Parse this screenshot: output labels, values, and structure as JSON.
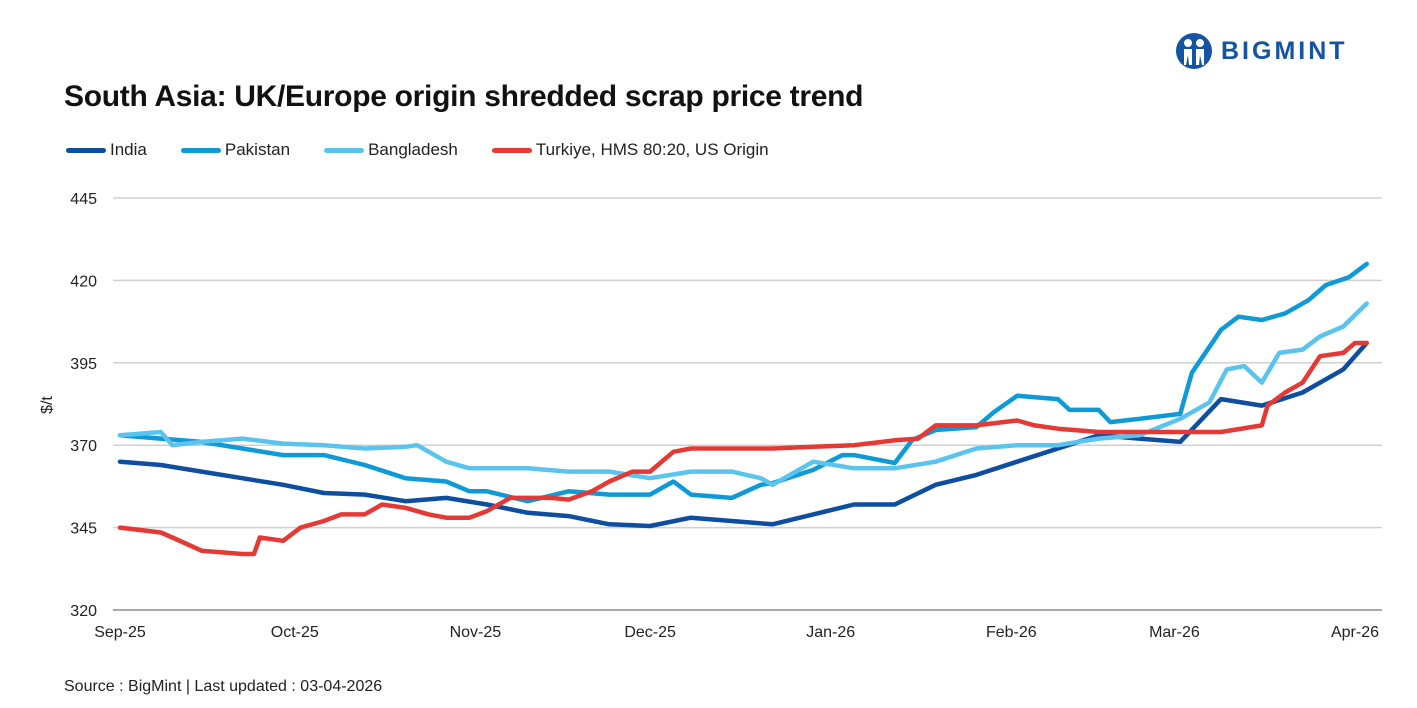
{
  "logo": {
    "text": "BIGMINT",
    "color": "#1553a5"
  },
  "source": "Source : BigMint | Last updated : 03-04-2026",
  "chart_data": {
    "type": "line",
    "title": "South Asia: UK/Europe origin shredded scrap price trend",
    "ylabel": "$/t",
    "xlabel": "",
    "ylim": [
      320,
      445
    ],
    "yticks": [
      320,
      345,
      370,
      395,
      420,
      445
    ],
    "xticks": [
      {
        "date": "2025-09-01",
        "label": "Sep-25"
      },
      {
        "date": "2025-10-01",
        "label": "Oct-25"
      },
      {
        "date": "2025-11-01",
        "label": "Nov-25"
      },
      {
        "date": "2025-12-01",
        "label": "Dec-25"
      },
      {
        "date": "2026-01-01",
        "label": "Jan-26"
      },
      {
        "date": "2026-02-01",
        "label": "Feb-26"
      },
      {
        "date": "2026-03-01",
        "label": "Mar-26"
      },
      {
        "date": "2026-04-01",
        "label": "Apr-26"
      }
    ],
    "grid": "horizontal",
    "legend": "top-left",
    "series": [
      {
        "name": "India",
        "color": "#0d4ea0",
        "points": [
          [
            "2025-09-01",
            365
          ],
          [
            "2025-09-08",
            364
          ],
          [
            "2025-09-15",
            362
          ],
          [
            "2025-09-22",
            360
          ],
          [
            "2025-09-29",
            358
          ],
          [
            "2025-10-06",
            355.5
          ],
          [
            "2025-10-13",
            355
          ],
          [
            "2025-10-20",
            353
          ],
          [
            "2025-10-27",
            354
          ],
          [
            "2025-11-03",
            352
          ],
          [
            "2025-11-10",
            349.5
          ],
          [
            "2025-11-17",
            348.5
          ],
          [
            "2025-11-24",
            346
          ],
          [
            "2025-12-01",
            345.5
          ],
          [
            "2025-12-08",
            348
          ],
          [
            "2025-12-15",
            347
          ],
          [
            "2025-12-22",
            346
          ],
          [
            "2025-12-29",
            349
          ],
          [
            "2026-01-05",
            352
          ],
          [
            "2026-01-12",
            352
          ],
          [
            "2026-01-19",
            358
          ],
          [
            "2026-01-26",
            361
          ],
          [
            "2026-02-02",
            365
          ],
          [
            "2026-02-09",
            369
          ],
          [
            "2026-02-16",
            373
          ],
          [
            "2026-02-23",
            372
          ],
          [
            "2026-03-02",
            371
          ],
          [
            "2026-03-09",
            384
          ],
          [
            "2026-03-16",
            382
          ],
          [
            "2026-03-23",
            386
          ],
          [
            "2026-03-30",
            393
          ],
          [
            "2026-04-03",
            401
          ]
        ]
      },
      {
        "name": "Pakistan",
        "color": "#0e9ad7",
        "points": [
          [
            "2025-09-01",
            373
          ],
          [
            "2025-09-08",
            372
          ],
          [
            "2025-09-15",
            371
          ],
          [
            "2025-09-22",
            369
          ],
          [
            "2025-09-29",
            367
          ],
          [
            "2025-10-06",
            367
          ],
          [
            "2025-10-13",
            364
          ],
          [
            "2025-10-20",
            360
          ],
          [
            "2025-10-27",
            359
          ],
          [
            "2025-10-31",
            356
          ],
          [
            "2025-11-03",
            356
          ],
          [
            "2025-11-10",
            353
          ],
          [
            "2025-11-17",
            356
          ],
          [
            "2025-11-24",
            355
          ],
          [
            "2025-12-01",
            355
          ],
          [
            "2025-12-05",
            359
          ],
          [
            "2025-12-08",
            355
          ],
          [
            "2025-12-15",
            354
          ],
          [
            "2025-12-20",
            358
          ],
          [
            "2025-12-22",
            358.5
          ],
          [
            "2025-12-29",
            362.5
          ],
          [
            "2026-01-03",
            367
          ],
          [
            "2026-01-05",
            367
          ],
          [
            "2026-01-12",
            364.6
          ],
          [
            "2026-01-15",
            371.6
          ],
          [
            "2026-01-19",
            374.6
          ],
          [
            "2026-01-26",
            375.5
          ],
          [
            "2026-01-29",
            380
          ],
          [
            "2026-02-02",
            385
          ],
          [
            "2026-02-09",
            384
          ],
          [
            "2026-02-11",
            380.7
          ],
          [
            "2026-02-16",
            380.7
          ],
          [
            "2026-02-18",
            377
          ],
          [
            "2026-02-23",
            378
          ],
          [
            "2026-03-02",
            379.5
          ],
          [
            "2026-03-04",
            392
          ],
          [
            "2026-03-09",
            405
          ],
          [
            "2026-03-12",
            409
          ],
          [
            "2026-03-16",
            408
          ],
          [
            "2026-03-20",
            410
          ],
          [
            "2026-03-24",
            414
          ],
          [
            "2026-03-27",
            418.6
          ],
          [
            "2026-03-31",
            421
          ],
          [
            "2026-04-03",
            425
          ]
        ]
      },
      {
        "name": "Bangladesh",
        "color": "#5bc4ee",
        "points": [
          [
            "2025-09-01",
            373
          ],
          [
            "2025-09-08",
            374
          ],
          [
            "2025-09-10",
            370
          ],
          [
            "2025-09-15",
            371
          ],
          [
            "2025-09-22",
            372
          ],
          [
            "2025-09-29",
            370.5
          ],
          [
            "2025-10-06",
            370
          ],
          [
            "2025-10-13",
            369
          ],
          [
            "2025-10-20",
            369.5
          ],
          [
            "2025-10-22",
            370
          ],
          [
            "2025-10-27",
            365
          ],
          [
            "2025-10-31",
            363
          ],
          [
            "2025-11-03",
            363
          ],
          [
            "2025-11-10",
            363
          ],
          [
            "2025-11-17",
            362
          ],
          [
            "2025-11-24",
            362
          ],
          [
            "2025-12-01",
            360
          ],
          [
            "2025-12-08",
            362
          ],
          [
            "2025-12-15",
            362
          ],
          [
            "2025-12-20",
            360
          ],
          [
            "2025-12-22",
            358
          ],
          [
            "2025-12-29",
            365
          ],
          [
            "2026-01-05",
            363
          ],
          [
            "2026-01-12",
            363
          ],
          [
            "2026-01-19",
            365
          ],
          [
            "2026-01-26",
            369
          ],
          [
            "2026-02-02",
            370
          ],
          [
            "2026-02-09",
            370
          ],
          [
            "2026-02-16",
            372
          ],
          [
            "2026-02-23",
            373
          ],
          [
            "2026-03-02",
            378
          ],
          [
            "2026-03-07",
            383
          ],
          [
            "2026-03-10",
            393
          ],
          [
            "2026-03-13",
            394
          ],
          [
            "2026-03-16",
            389
          ],
          [
            "2026-03-19",
            398
          ],
          [
            "2026-03-23",
            399
          ],
          [
            "2026-03-26",
            403
          ],
          [
            "2026-03-30",
            406
          ],
          [
            "2026-04-03",
            413
          ]
        ]
      },
      {
        "name": "Turkiye, HMS 80:20, US Origin",
        "color": "#e53935",
        "points": [
          [
            "2025-09-01",
            345
          ],
          [
            "2025-09-08",
            343.5
          ],
          [
            "2025-09-10",
            342
          ],
          [
            "2025-09-15",
            338
          ],
          [
            "2025-09-22",
            337
          ],
          [
            "2025-09-24",
            337
          ],
          [
            "2025-09-25",
            342
          ],
          [
            "2025-09-29",
            341
          ],
          [
            "2025-10-02",
            345
          ],
          [
            "2025-10-06",
            347
          ],
          [
            "2025-10-09",
            349
          ],
          [
            "2025-10-13",
            349
          ],
          [
            "2025-10-16",
            352
          ],
          [
            "2025-10-20",
            351
          ],
          [
            "2025-10-24",
            349
          ],
          [
            "2025-10-27",
            348
          ],
          [
            "2025-10-31",
            348
          ],
          [
            "2025-11-03",
            350
          ],
          [
            "2025-11-07",
            354
          ],
          [
            "2025-11-10",
            354
          ],
          [
            "2025-11-14",
            354
          ],
          [
            "2025-11-17",
            353.5
          ],
          [
            "2025-11-21",
            356
          ],
          [
            "2025-11-24",
            359
          ],
          [
            "2025-11-28",
            362
          ],
          [
            "2025-12-01",
            362
          ],
          [
            "2025-12-05",
            368
          ],
          [
            "2025-12-08",
            369
          ],
          [
            "2025-12-15",
            369
          ],
          [
            "2025-12-22",
            369
          ],
          [
            "2025-12-29",
            369.5
          ],
          [
            "2026-01-05",
            370
          ],
          [
            "2026-01-12",
            371.5
          ],
          [
            "2026-01-16",
            372
          ],
          [
            "2026-01-19",
            376
          ],
          [
            "2026-01-26",
            376
          ],
          [
            "2026-02-02",
            377.5
          ],
          [
            "2026-02-05",
            376
          ],
          [
            "2026-02-09",
            375
          ],
          [
            "2026-02-16",
            374
          ],
          [
            "2026-02-23",
            374
          ],
          [
            "2026-03-02",
            374
          ],
          [
            "2026-03-09",
            374
          ],
          [
            "2026-03-16",
            376
          ],
          [
            "2026-03-17",
            382
          ],
          [
            "2026-03-20",
            386
          ],
          [
            "2026-03-23",
            389
          ],
          [
            "2026-03-26",
            397
          ],
          [
            "2026-03-30",
            398
          ],
          [
            "2026-04-01",
            401
          ],
          [
            "2026-04-03",
            401
          ]
        ]
      }
    ]
  }
}
